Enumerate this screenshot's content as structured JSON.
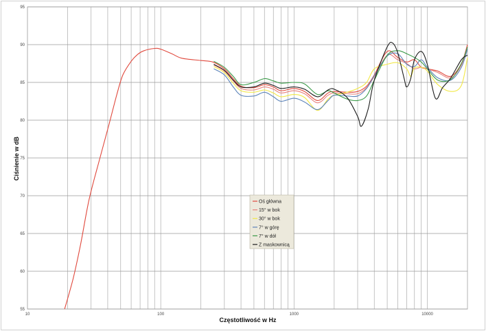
{
  "chart_data": {
    "type": "line",
    "title": "",
    "xlabel": "Częstotliwość w Hz",
    "ylabel": "Ciśnienie w dB",
    "xscale": "log",
    "xlim": [
      10,
      20000
    ],
    "ylim": [
      55,
      95
    ],
    "xticks": [
      10,
      100,
      1000,
      10000
    ],
    "xtick_labels": [
      "10",
      "100",
      "1000",
      "10000"
    ],
    "yticks": [
      55,
      60,
      65,
      70,
      75,
      80,
      85,
      90,
      95
    ],
    "ytick_labels": [
      "55",
      "60",
      "65",
      "70",
      "75",
      "80",
      "85",
      "90",
      "95"
    ],
    "grid": true,
    "legend_placement": "center-bottom",
    "series": [
      {
        "name": "Oś główna",
        "color": "#e0483c",
        "points": [
          [
            19,
            55
          ],
          [
            22,
            59
          ],
          [
            25,
            63.5
          ],
          [
            29,
            69.5
          ],
          [
            35,
            75
          ],
          [
            41,
            79.5
          ],
          [
            47,
            83.5
          ],
          [
            52,
            86
          ],
          [
            60,
            87.8
          ],
          [
            67,
            88.7
          ],
          [
            75,
            89.2
          ],
          [
            90,
            89.5
          ],
          [
            100,
            89.4
          ],
          [
            121,
            88.8
          ],
          [
            144,
            88.2
          ],
          [
            200,
            87.9
          ],
          [
            246,
            87.7
          ],
          [
            300,
            86.8
          ],
          [
            350,
            85.5
          ],
          [
            400,
            84.5
          ],
          [
            500,
            84.3
          ],
          [
            600,
            84.7
          ],
          [
            700,
            84.4
          ],
          [
            800,
            83.9
          ],
          [
            1000,
            84.2
          ],
          [
            1200,
            83.8
          ],
          [
            1500,
            82.6
          ],
          [
            1800,
            83.6
          ],
          [
            2000,
            83.8
          ],
          [
            2500,
            83.7
          ],
          [
            3000,
            83.8
          ],
          [
            3500,
            84.5
          ],
          [
            4000,
            86
          ],
          [
            5000,
            89.1
          ],
          [
            6000,
            88.3
          ],
          [
            7000,
            87.7
          ],
          [
            8000,
            88
          ],
          [
            9000,
            87
          ],
          [
            10000,
            86.8
          ],
          [
            12000,
            86.5
          ],
          [
            15000,
            85.8
          ],
          [
            18000,
            87.5
          ],
          [
            20000,
            90
          ]
        ]
      },
      {
        "name": "15° w bok",
        "color": "#e8807a",
        "points": [
          [
            250,
            87.3
          ],
          [
            300,
            86.5
          ],
          [
            350,
            85.2
          ],
          [
            400,
            84.2
          ],
          [
            500,
            84
          ],
          [
            600,
            84.4
          ],
          [
            700,
            84.1
          ],
          [
            800,
            83.6
          ],
          [
            1000,
            83.9
          ],
          [
            1200,
            83.5
          ],
          [
            1500,
            82.3
          ],
          [
            1800,
            83.3
          ],
          [
            2000,
            83.6
          ],
          [
            2500,
            83.5
          ],
          [
            3000,
            83.5
          ],
          [
            3500,
            84.3
          ],
          [
            4000,
            85.8
          ],
          [
            5000,
            88.6
          ],
          [
            6000,
            88
          ],
          [
            7000,
            87.5
          ],
          [
            8000,
            86.8
          ],
          [
            9000,
            87
          ],
          [
            10000,
            86.8
          ],
          [
            12000,
            86.3
          ],
          [
            15000,
            85.6
          ],
          [
            18000,
            87.3
          ],
          [
            20000,
            89.8
          ]
        ]
      },
      {
        "name": "30° w bok",
        "color": "#f2e845",
        "points": [
          [
            250,
            87.1
          ],
          [
            300,
            86.3
          ],
          [
            350,
            84.9
          ],
          [
            400,
            83.9
          ],
          [
            500,
            83.7
          ],
          [
            600,
            84
          ],
          [
            700,
            83.6
          ],
          [
            800,
            83.1
          ],
          [
            1000,
            83.4
          ],
          [
            1200,
            83
          ],
          [
            1500,
            81.3
          ],
          [
            1800,
            82.8
          ],
          [
            2000,
            83.3
          ],
          [
            2500,
            83.7
          ],
          [
            3000,
            84.2
          ],
          [
            3500,
            85
          ],
          [
            4000,
            86.8
          ],
          [
            5000,
            87.4
          ],
          [
            6000,
            87.6
          ],
          [
            7000,
            86.8
          ],
          [
            7500,
            85.8
          ],
          [
            8000,
            86.9
          ],
          [
            9000,
            87
          ],
          [
            10000,
            86.5
          ],
          [
            12000,
            84.7
          ],
          [
            15000,
            83.8
          ],
          [
            18000,
            84.6
          ],
          [
            20000,
            88.3
          ]
        ]
      },
      {
        "name": "7° w górę",
        "color": "#5b82b8",
        "points": [
          [
            250,
            86.8
          ],
          [
            300,
            86
          ],
          [
            350,
            84.4
          ],
          [
            400,
            83.3
          ],
          [
            500,
            83.2
          ],
          [
            600,
            83.7
          ],
          [
            700,
            83.1
          ],
          [
            800,
            82.5
          ],
          [
            1000,
            82.9
          ],
          [
            1200,
            82.4
          ],
          [
            1500,
            81.4
          ],
          [
            1800,
            82.6
          ],
          [
            2000,
            83.3
          ],
          [
            2500,
            83.2
          ],
          [
            3000,
            83.2
          ],
          [
            3500,
            84.2
          ],
          [
            4000,
            85.9
          ],
          [
            5000,
            88.5
          ],
          [
            6000,
            88.8
          ],
          [
            7000,
            87.4
          ],
          [
            8000,
            87.1
          ],
          [
            9000,
            88
          ],
          [
            10000,
            87
          ],
          [
            12000,
            85.6
          ],
          [
            15000,
            85.3
          ],
          [
            18000,
            87
          ],
          [
            20000,
            89.4
          ]
        ]
      },
      {
        "name": "7° w dół",
        "color": "#3a9a48",
        "points": [
          [
            250,
            87.8
          ],
          [
            300,
            87
          ],
          [
            350,
            85.8
          ],
          [
            400,
            84.7
          ],
          [
            500,
            85
          ],
          [
            600,
            85.5
          ],
          [
            700,
            85.2
          ],
          [
            800,
            84.9
          ],
          [
            1000,
            85
          ],
          [
            1200,
            84.8
          ],
          [
            1500,
            83.4
          ],
          [
            1800,
            83.9
          ],
          [
            2000,
            83.6
          ],
          [
            2500,
            82.8
          ],
          [
            3000,
            82.6
          ],
          [
            3500,
            83.2
          ],
          [
            4000,
            85.3
          ],
          [
            5000,
            88.6
          ],
          [
            6000,
            89.2
          ],
          [
            7000,
            88.8
          ],
          [
            8000,
            88.3
          ],
          [
            9000,
            87.7
          ],
          [
            10000,
            86.8
          ],
          [
            12000,
            85.3
          ],
          [
            15000,
            85.4
          ],
          [
            18000,
            87.5
          ],
          [
            20000,
            89.7
          ]
        ]
      },
      {
        "name": "Z maskownicą",
        "color": "#1a1a1a",
        "points": [
          [
            250,
            87.4
          ],
          [
            300,
            86.6
          ],
          [
            350,
            85.3
          ],
          [
            400,
            84.4
          ],
          [
            500,
            84.4
          ],
          [
            600,
            84.9
          ],
          [
            700,
            84.6
          ],
          [
            800,
            84.2
          ],
          [
            1000,
            84.4
          ],
          [
            1200,
            84.1
          ],
          [
            1500,
            83.1
          ],
          [
            1800,
            84
          ],
          [
            2000,
            84.1
          ],
          [
            2500,
            83
          ],
          [
            3000,
            80.5
          ],
          [
            3200,
            79.2
          ],
          [
            3600,
            81.5
          ],
          [
            4000,
            85.3
          ],
          [
            5000,
            89.7
          ],
          [
            5500,
            90.2
          ],
          [
            6000,
            88.9
          ],
          [
            6700,
            85.5
          ],
          [
            7000,
            84.4
          ],
          [
            7500,
            85.5
          ],
          [
            8000,
            88
          ],
          [
            9000,
            89.1
          ],
          [
            10000,
            87.4
          ],
          [
            11500,
            82.9
          ],
          [
            13000,
            84.3
          ],
          [
            15000,
            85.6
          ],
          [
            18000,
            88
          ],
          [
            20000,
            88.6
          ]
        ]
      }
    ]
  }
}
